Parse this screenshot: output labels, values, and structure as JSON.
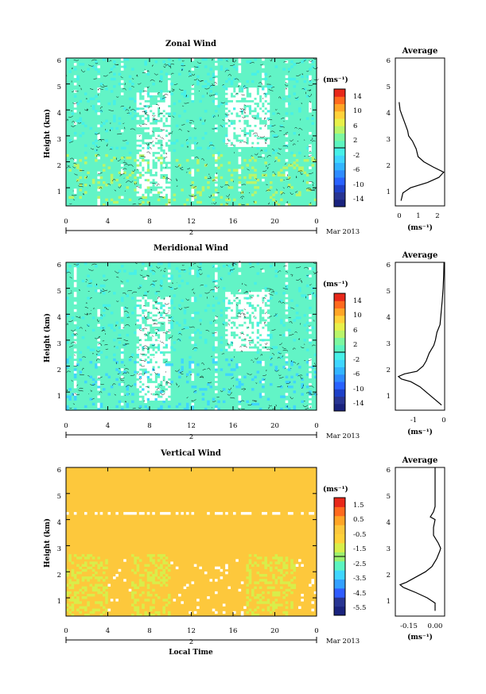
{
  "chart_data": [
    {
      "type": "heatmap",
      "title": "Zonal Wind",
      "xlabel": "",
      "ylabel": "Height (km)",
      "xlim": [
        0,
        24
      ],
      "ylim": [
        0.3,
        6.0
      ],
      "x_ticks": [
        "0",
        "4",
        "8",
        "12",
        "16",
        "20",
        "0"
      ],
      "y_ticks": [
        "1",
        "2",
        "3",
        "4",
        "5",
        "6"
      ],
      "date_marker": "2",
      "date_label": "Mar 2013",
      "colorbar": {
        "unit": "(ms⁻¹)",
        "range": [
          -16,
          16
        ],
        "ticks": [
          "14",
          "10",
          "6",
          "2",
          "-2",
          "-6",
          "-10",
          "-14"
        ]
      },
      "average_panel": {
        "title": "Average",
        "xlabel": "(ms⁻¹)",
        "x_ticks": [
          "0",
          "1",
          "2"
        ],
        "xlim": [
          -0.2,
          2.4
        ],
        "y_ticks": [
          "1",
          "2",
          "3",
          "4",
          "5",
          "6"
        ],
        "height": [
          0.5,
          0.8,
          1.0,
          1.2,
          1.4,
          1.6,
          1.8,
          2.0,
          2.2,
          2.5,
          2.8,
          3.0,
          3.2,
          3.5,
          3.8,
          4.0,
          4.3
        ],
        "value": [
          0.1,
          0.2,
          0.6,
          1.5,
          2.1,
          2.35,
          1.8,
          1.3,
          1.0,
          0.9,
          0.7,
          0.5,
          0.45,
          0.3,
          0.15,
          0.05,
          0.0
        ]
      }
    },
    {
      "type": "heatmap",
      "title": "Meridional Wind",
      "xlabel": "",
      "ylabel": "Height (km)",
      "xlim": [
        0,
        24
      ],
      "ylim": [
        0.3,
        6.0
      ],
      "x_ticks": [
        "0",
        "4",
        "8",
        "12",
        "16",
        "20",
        "0"
      ],
      "y_ticks": [
        "1",
        "2",
        "3",
        "4",
        "5",
        "6"
      ],
      "date_marker": "2",
      "date_label": "Mar 2013",
      "colorbar": {
        "unit": "(ms⁻¹)",
        "range": [
          -16,
          16
        ],
        "ticks": [
          "14",
          "10",
          "6",
          "2",
          "-2",
          "-6",
          "-10",
          "-14"
        ]
      },
      "average_panel": {
        "title": "Average",
        "xlabel": "(ms⁻¹)",
        "x_ticks": [
          "-1",
          "0"
        ],
        "xlim": [
          -1.6,
          0.0
        ],
        "y_ticks": [
          "1",
          "2",
          "3",
          "4",
          "5",
          "6"
        ],
        "height": [
          0.5,
          0.8,
          1.0,
          1.2,
          1.4,
          1.5,
          1.6,
          1.7,
          1.8,
          2.0,
          2.2,
          2.5,
          2.8,
          3.0,
          3.3,
          3.6,
          4.0,
          4.5,
          5.0,
          5.5,
          6.0
        ],
        "value": [
          -0.1,
          -0.4,
          -0.6,
          -0.8,
          -1.1,
          -1.4,
          -1.5,
          -1.3,
          -0.9,
          -0.7,
          -0.6,
          -0.5,
          -0.35,
          -0.3,
          -0.25,
          -0.15,
          -0.12,
          -0.08,
          -0.05,
          -0.03,
          -0.02
        ]
      }
    },
    {
      "type": "heatmap",
      "title": "Vertical Wind",
      "xlabel": "Local Time",
      "ylabel": "Height (km)",
      "xlim": [
        0,
        24
      ],
      "ylim": [
        0.3,
        6.0
      ],
      "x_ticks": [
        "0",
        "4",
        "8",
        "12",
        "16",
        "20",
        "0"
      ],
      "y_ticks": [
        "1",
        "2",
        "3",
        "4",
        "5",
        "6"
      ],
      "date_marker": "2",
      "date_label": "Mar 2013",
      "colorbar": {
        "unit": "(ms⁻¹)",
        "range": [
          -6.0,
          2.0
        ],
        "ticks": [
          "1.5",
          "0.5",
          "-0.5",
          "-1.5",
          "-2.5",
          "-3.5",
          "-4.5",
          "-5.5"
        ]
      },
      "average_panel": {
        "title": "Average",
        "xlabel": "(ms⁻¹)",
        "x_ticks": [
          "-0.15",
          "0.00"
        ],
        "xlim": [
          -0.25,
          0.06
        ],
        "y_ticks": [
          "1",
          "2",
          "3",
          "4",
          "5",
          "6"
        ],
        "height": [
          0.5,
          0.8,
          1.0,
          1.2,
          1.4,
          1.5,
          1.6,
          1.8,
          2.0,
          2.2,
          2.5,
          2.8,
          2.9,
          3.1,
          3.4,
          3.7,
          4.0,
          4.1,
          4.3,
          4.5,
          5.0,
          5.5,
          6.0
        ],
        "value": [
          0.0,
          0.0,
          -0.05,
          -0.12,
          -0.2,
          -0.22,
          -0.18,
          -0.12,
          -0.06,
          -0.02,
          0.01,
          0.03,
          0.035,
          0.02,
          -0.01,
          -0.01,
          0.0,
          -0.03,
          -0.01,
          0.0,
          0.0,
          0.0,
          0.0
        ]
      }
    }
  ]
}
